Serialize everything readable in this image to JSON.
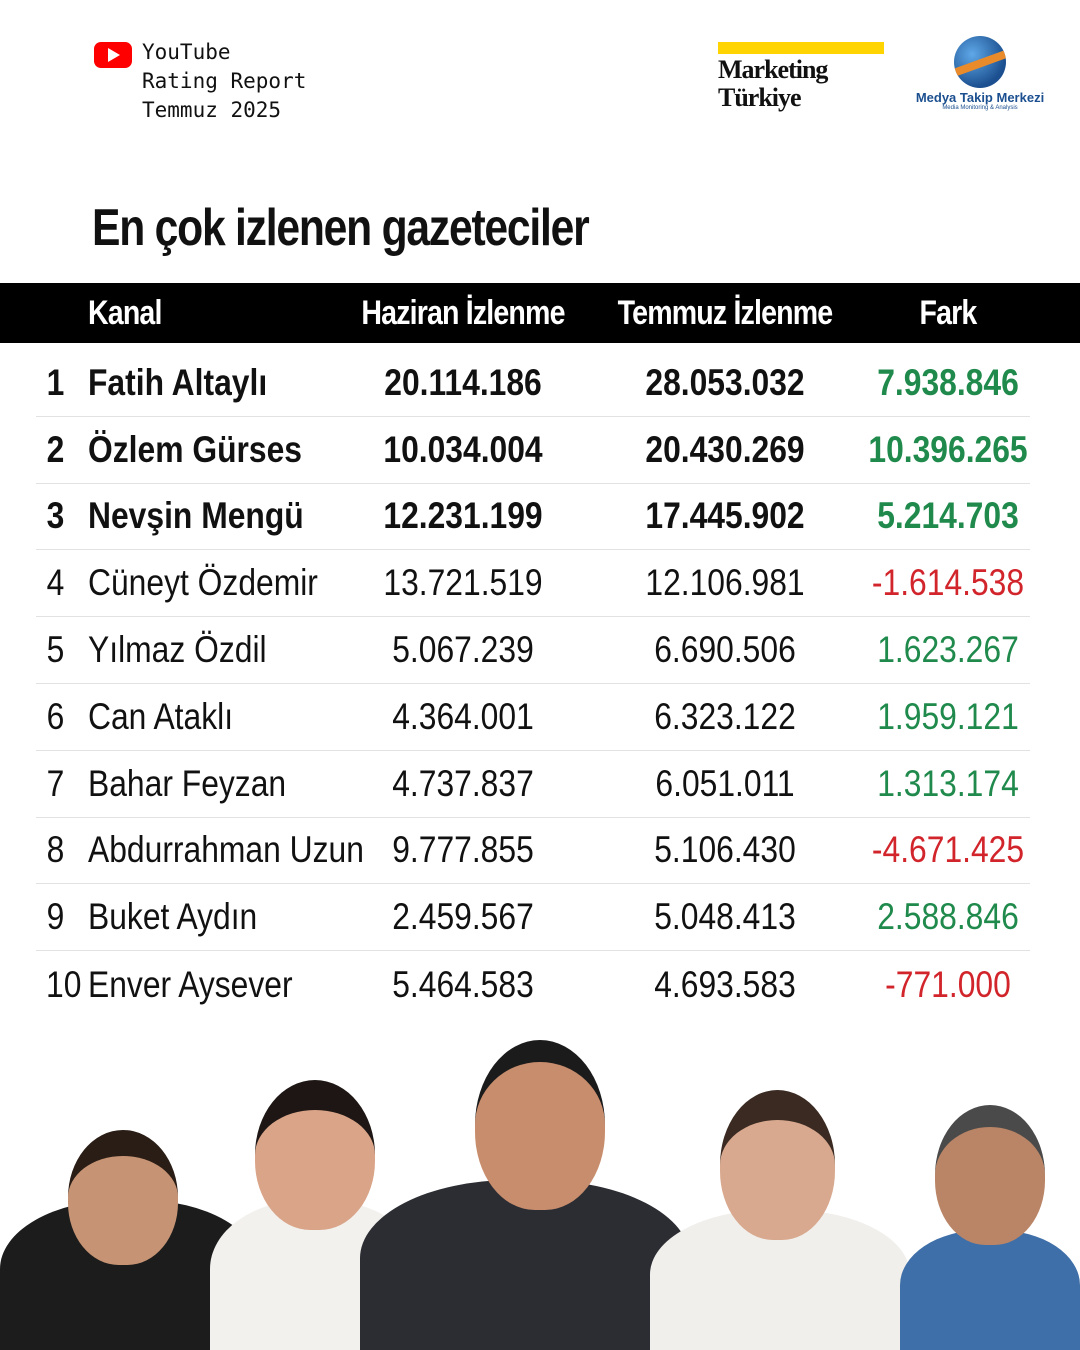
{
  "brand": {
    "line1": "YouTube",
    "line2": "Rating Report",
    "line3": "Temmuz 2025",
    "icon": "youtube-icon"
  },
  "partners": {
    "marketing_line1": "Marketing",
    "marketing_line2": "Türkiye",
    "mtm_name": "Medya Takip Merkezi",
    "mtm_sub": "Media Monitoring & Analysis"
  },
  "title": "En çok izlenen gazeteciler",
  "table": {
    "headers": {
      "kanal": "Kanal",
      "haziran": "Haziran İzlenme",
      "temmuz": "Temmuz İzlenme",
      "fark": "Fark"
    },
    "rows": [
      {
        "rank": "1",
        "name": "Fatih Altaylı",
        "haziran": "20.114.186",
        "temmuz": "28.053.032",
        "fark": "7.938.846",
        "trend": "pos"
      },
      {
        "rank": "2",
        "name": "Özlem Gürses",
        "haziran": "10.034.004",
        "temmuz": "20.430.269",
        "fark": "10.396.265",
        "trend": "pos"
      },
      {
        "rank": "3",
        "name": "Nevşin Mengü",
        "haziran": "12.231.199",
        "temmuz": "17.445.902",
        "fark": "5.214.703",
        "trend": "pos"
      },
      {
        "rank": "4",
        "name": "Cüneyt Özdemir",
        "haziran": "13.721.519",
        "temmuz": "12.106.981",
        "fark": "-1.614.538",
        "trend": "neg"
      },
      {
        "rank": "5",
        "name": "Yılmaz Özdil",
        "haziran": "5.067.239",
        "temmuz": "6.690.506",
        "fark": "1.623.267",
        "trend": "pos"
      },
      {
        "rank": "6",
        "name": "Can Ataklı",
        "haziran": "4.364.001",
        "temmuz": "6.323.122",
        "fark": "1.959.121",
        "trend": "pos"
      },
      {
        "rank": "7",
        "name": "Bahar Feyzan",
        "haziran": "4.737.837",
        "temmuz": "6.051.011",
        "fark": "1.313.174",
        "trend": "pos"
      },
      {
        "rank": "8",
        "name": "Abdurrahman Uzun",
        "haziran": "9.777.855",
        "temmuz": "5.106.430",
        "fark": "-4.671.425",
        "trend": "neg"
      },
      {
        "rank": "9",
        "name": "Buket Aydın",
        "haziran": "2.459.567",
        "temmuz": "5.048.413",
        "fark": "2.588.846",
        "trend": "pos"
      },
      {
        "rank": "10",
        "name": "Enver Aysever",
        "haziran": "5.464.583",
        "temmuz": "4.693.583",
        "fark": "-771.000",
        "trend": "neg"
      }
    ]
  },
  "colors": {
    "positive": "#1f8a4c",
    "negative": "#d2242b",
    "header_bg": "#000000",
    "accent_yellow": "#ffd400"
  }
}
